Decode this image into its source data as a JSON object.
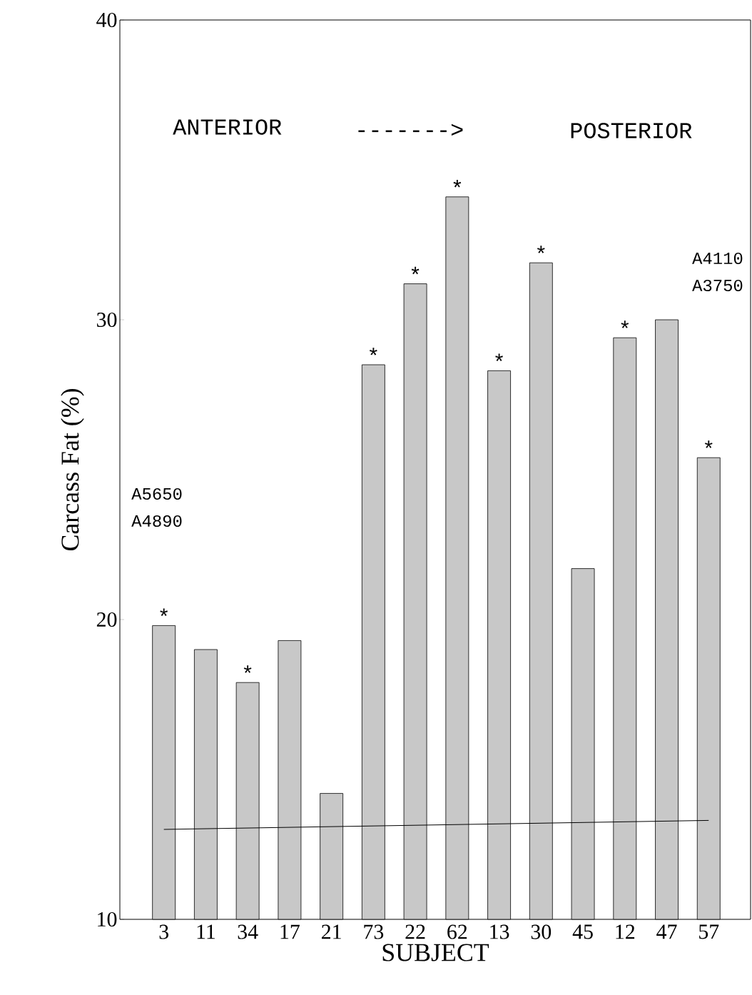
{
  "chart_data": {
    "type": "bar",
    "xlabel": "SUBJECT",
    "ylabel": "Carcass Fat (%)",
    "categories": [
      "3",
      "11",
      "34",
      "17",
      "21",
      "73",
      "22",
      "62",
      "13",
      "30",
      "45",
      "12",
      "47",
      "57"
    ],
    "series": [
      {
        "color": "#c8c8c8",
        "values": [
          19.8,
          19.0,
          17.9,
          19.3,
          14.2,
          28.5,
          31.2,
          34.1,
          28.3,
          31.9,
          21.7,
          29.4,
          30.0,
          25.4
        ]
      },
      {
        "type": "line",
        "color": "#000000",
        "marker": "none",
        "x": [
          "3",
          "57"
        ],
        "values": [
          13.0,
          13.3
        ]
      }
    ],
    "ylim": [
      10,
      40
    ],
    "yticks": [
      10,
      20,
      30,
      40
    ],
    "annotations": [
      "ANTERIOR",
      "------->",
      "POSTERIOR",
      "A5650",
      "A4890",
      "A4110",
      "A3750",
      {
        "text": "*",
        "x": "3",
        "y": 19.8
      },
      {
        "text": "*",
        "x": "34",
        "y": 17.9
      },
      {
        "text": "*",
        "x": "73",
        "y": 28.5
      },
      {
        "text": "*",
        "x": "22",
        "y": 31.2
      },
      {
        "text": "*",
        "x": "62",
        "y": 34.1
      },
      {
        "text": "*",
        "x": "13",
        "y": 28.3
      },
      {
        "text": "*",
        "x": "30",
        "y": 31.9
      },
      {
        "text": "*",
        "x": "12",
        "y": 29.4
      },
      {
        "text": "*",
        "x": "57",
        "y": 25.4
      }
    ]
  }
}
